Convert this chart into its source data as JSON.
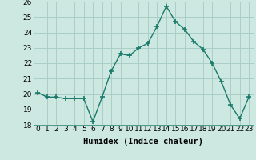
{
  "x": [
    0,
    1,
    2,
    3,
    4,
    5,
    6,
    7,
    8,
    9,
    10,
    11,
    12,
    13,
    14,
    15,
    16,
    17,
    18,
    19,
    20,
    21,
    22,
    23
  ],
  "y": [
    20.1,
    19.8,
    19.8,
    19.7,
    19.7,
    19.7,
    18.2,
    19.8,
    21.5,
    22.6,
    22.5,
    23.0,
    23.3,
    24.4,
    25.7,
    24.7,
    24.2,
    23.4,
    22.9,
    22.0,
    20.8,
    19.3,
    18.4,
    19.8
  ],
  "xlabel": "Humidex (Indice chaleur)",
  "ylim": [
    18,
    26
  ],
  "xlim": [
    -0.5,
    23.5
  ],
  "yticks": [
    18,
    19,
    20,
    21,
    22,
    23,
    24,
    25,
    26
  ],
  "xticks": [
    0,
    1,
    2,
    3,
    4,
    5,
    6,
    7,
    8,
    9,
    10,
    11,
    12,
    13,
    14,
    15,
    16,
    17,
    18,
    19,
    20,
    21,
    22,
    23
  ],
  "line_color": "#1a7a6a",
  "marker": "+",
  "marker_size": 4,
  "bg_color": "#cce8e0",
  "grid_color": "#aacfc8",
  "tick_fontsize": 6.5,
  "xlabel_fontsize": 7.5,
  "line_width": 1.0
}
